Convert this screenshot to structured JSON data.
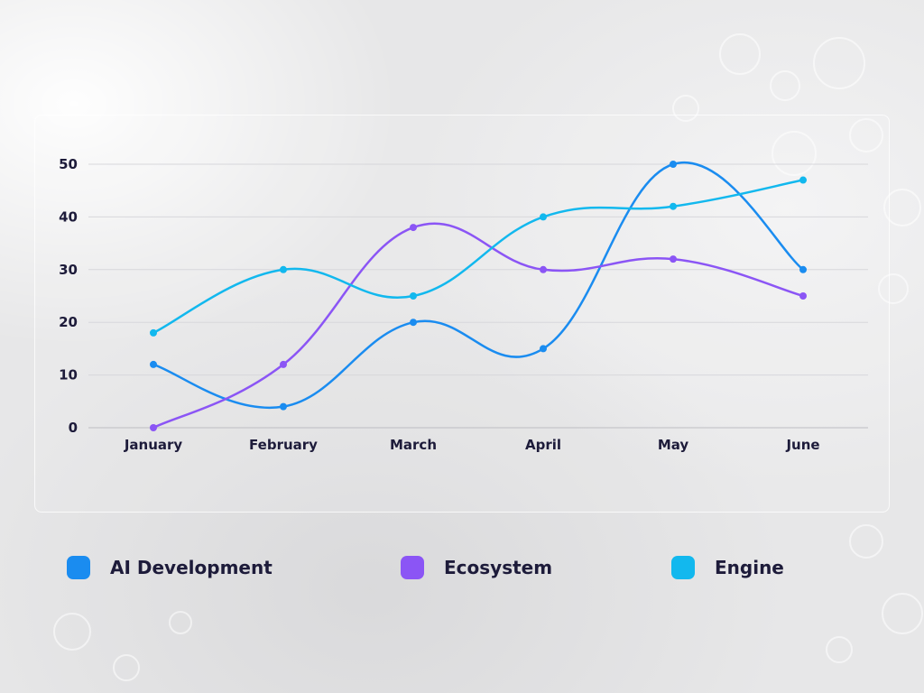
{
  "chart_data": {
    "type": "line",
    "categories": [
      "January",
      "February",
      "March",
      "April",
      "May",
      "June"
    ],
    "y_ticks": [
      "0",
      "10",
      "20",
      "30",
      "40",
      "50"
    ],
    "ylim": [
      0,
      50
    ],
    "grid": true,
    "legend_position": "bottom",
    "series": [
      {
        "name": "AI Development",
        "color": "#1a8cf0",
        "values": [
          12,
          4,
          20,
          15,
          50,
          30
        ]
      },
      {
        "name": "Ecosystem",
        "color": "#8b55f5",
        "values": [
          0,
          12,
          38,
          30,
          32,
          25
        ]
      },
      {
        "name": "Engine",
        "color": "#12b8ee",
        "values": [
          18,
          30,
          25,
          40,
          42,
          47
        ]
      }
    ]
  }
}
